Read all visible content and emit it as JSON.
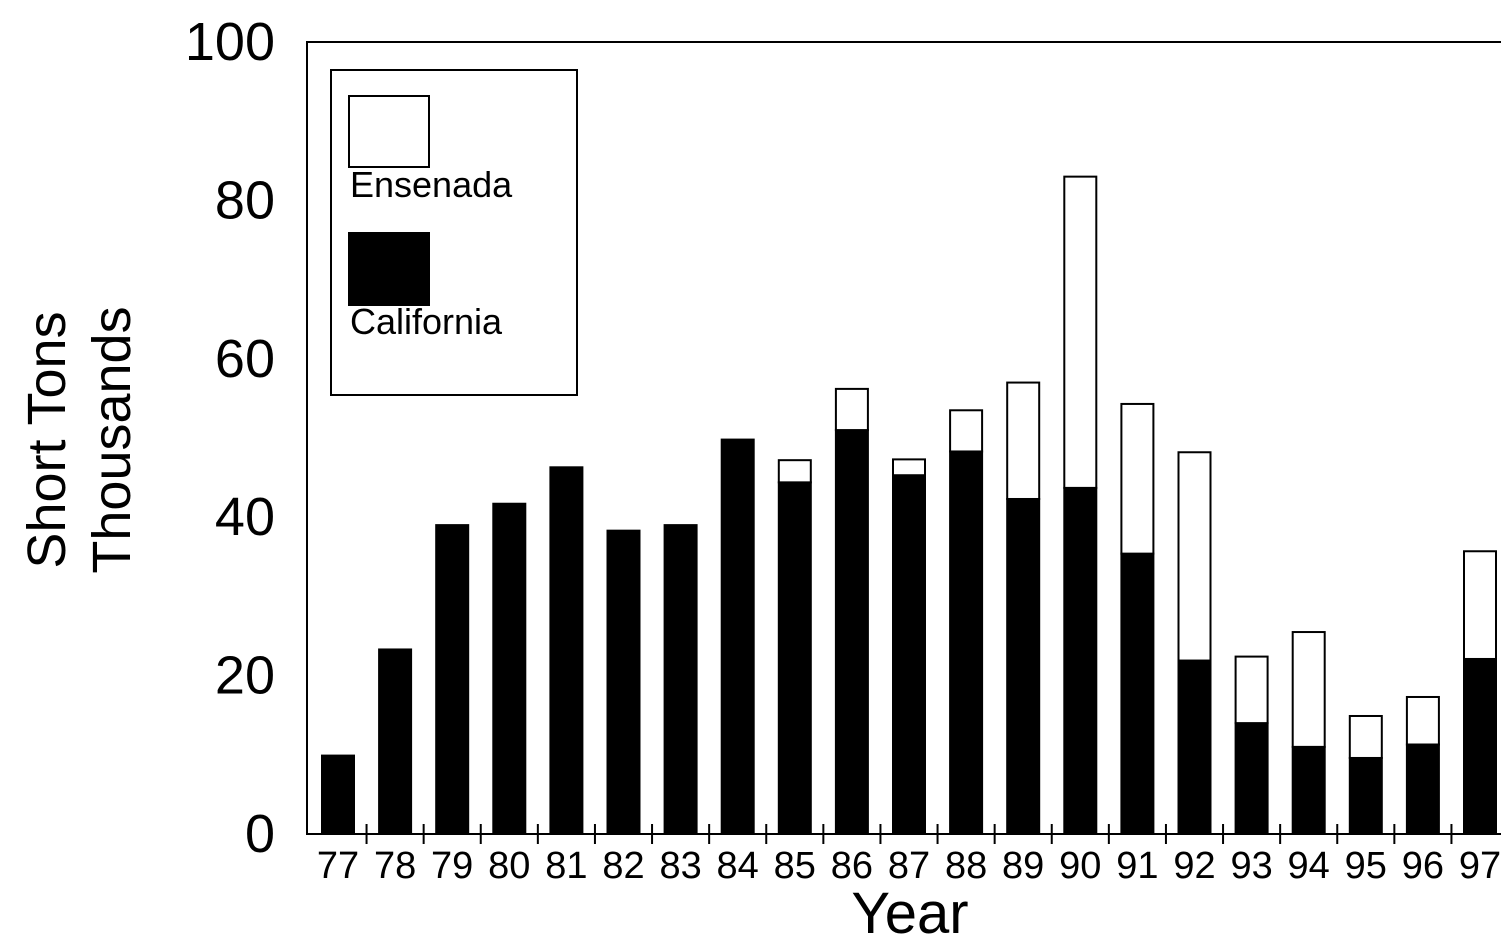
{
  "chart_data": {
    "type": "bar",
    "stacked": true,
    "title": "",
    "xlabel": "Year",
    "ylabel_lines": [
      "Short Tons",
      "Thousands"
    ],
    "categories": [
      "77",
      "78",
      "79",
      "80",
      "81",
      "82",
      "83",
      "84",
      "85",
      "86",
      "87",
      "88",
      "89",
      "90",
      "91",
      "92",
      "93",
      "94",
      "95",
      "96",
      "97"
    ],
    "ylim": [
      0,
      100
    ],
    "yticks": [
      0,
      20,
      40,
      60,
      80,
      100
    ],
    "grid": false,
    "legend_position": "top-left",
    "series": [
      {
        "name": "California",
        "color": "#000000",
        "values": [
          9.9,
          23.3,
          39.0,
          41.7,
          46.3,
          38.3,
          39.0,
          49.8,
          44.4,
          51.0,
          45.3,
          48.3,
          42.3,
          43.7,
          35.4,
          21.9,
          14.0,
          11.0,
          9.6,
          11.3,
          22.1
        ]
      },
      {
        "name": "Ensenada",
        "color": "#ffffff",
        "values": [
          0,
          0,
          0,
          0,
          0,
          0,
          0,
          0,
          2.8,
          5.2,
          2.0,
          5.2,
          14.7,
          39.3,
          18.9,
          26.3,
          8.4,
          14.5,
          5.3,
          6.0,
          13.6
        ]
      }
    ]
  }
}
